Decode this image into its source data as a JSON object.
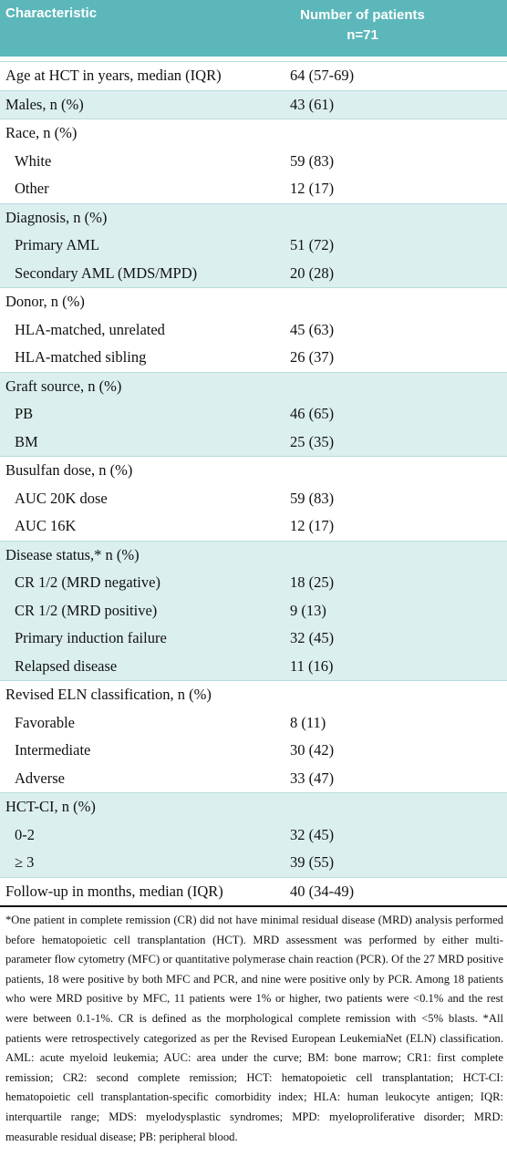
{
  "table": {
    "header": {
      "characteristic": "Characteristic",
      "patients": [
        "Number of patients",
        "n=71"
      ]
    },
    "groups": [
      {
        "label": "Age at HCT in years, median (IQR)",
        "value": "64 (57-69)"
      },
      {
        "label": "Males, n (%)",
        "value": "43 (61)"
      },
      {
        "label": "Race, n (%)",
        "items": [
          [
            "White",
            "59 (83)"
          ],
          [
            "Other",
            "12 (17)"
          ]
        ]
      },
      {
        "label": "Diagnosis, n (%)",
        "items": [
          [
            "Primary AML",
            "51 (72)"
          ],
          [
            "Secondary AML (MDS/MPD)",
            "20 (28)"
          ]
        ]
      },
      {
        "label": "Donor, n (%)",
        "items": [
          [
            "HLA-matched, unrelated",
            "45 (63)"
          ],
          [
            "HLA-matched sibling",
            "26 (37)"
          ]
        ]
      },
      {
        "label": "Graft source, n (%)",
        "items": [
          [
            "PB",
            "46 (65)"
          ],
          [
            "BM",
            "25 (35)"
          ]
        ]
      },
      {
        "label": "Busulfan dose, n (%)",
        "items": [
          [
            "AUC 20K dose",
            "59 (83)"
          ],
          [
            "AUC 16K",
            "12 (17)"
          ]
        ]
      },
      {
        "label": "Disease status,* n (%)",
        "items": [
          [
            "CR 1/2 (MRD negative)",
            "18 (25)"
          ],
          [
            "CR 1/2 (MRD positive)",
            "9 (13)"
          ],
          [
            "Primary induction failure",
            "32 (45)"
          ],
          [
            "Relapsed disease",
            "11 (16)"
          ]
        ]
      },
      {
        "label": "Revised ELN classification, n (%)",
        "items": [
          [
            "Favorable",
            "8 (11)"
          ],
          [
            "Intermediate",
            "30 (42)"
          ],
          [
            "Adverse",
            "33 (47)"
          ]
        ]
      },
      {
        "label": "HCT-CI, n (%)",
        "items": [
          [
            "0-2",
            "32 (45)"
          ],
          [
            "≥ 3",
            "39 (55)"
          ]
        ]
      },
      {
        "label": "Follow-up in months, median (IQR)",
        "value": "40 (34-49)"
      }
    ],
    "footnote": "*One patient in complete remission (CR) did not have minimal residual disease (MRD) analysis performed before hematopoietic cell transplantation (HCT). MRD assessment was performed by either multi-parameter flow cytometry (MFC) or quantitative polymerase chain reaction (PCR). Of the 27 MRD positive patients, 18 were positive by both MFC and PCR, and nine were positive only by PCR. Among 18 patients who were MRD positive by MFC, 11 patients were 1% or higher, two patients were <0.1% and the rest were between 0.1-1%. CR is defined as the morphological complete remission with <5% blasts. *All patients were retrospectively categorized as per the Revised European LeukemiaNet (ELN) classification. AML: acute myeloid leukemia; AUC: area under the curve; BM: bone marrow; CR1: first complete remission; CR2: second complete remission; HCT: hematopoietic cell transplantation; HCT-CI: hematopoietic cell transplantation-specific comorbidity index; HLA: human leukocyte antigen; IQR: interquartile range; MDS: myelodysplastic syndromes; MPD: myeloproliferative disorder; MRD: measurable residual disease; PB: peripheral blood."
  }
}
